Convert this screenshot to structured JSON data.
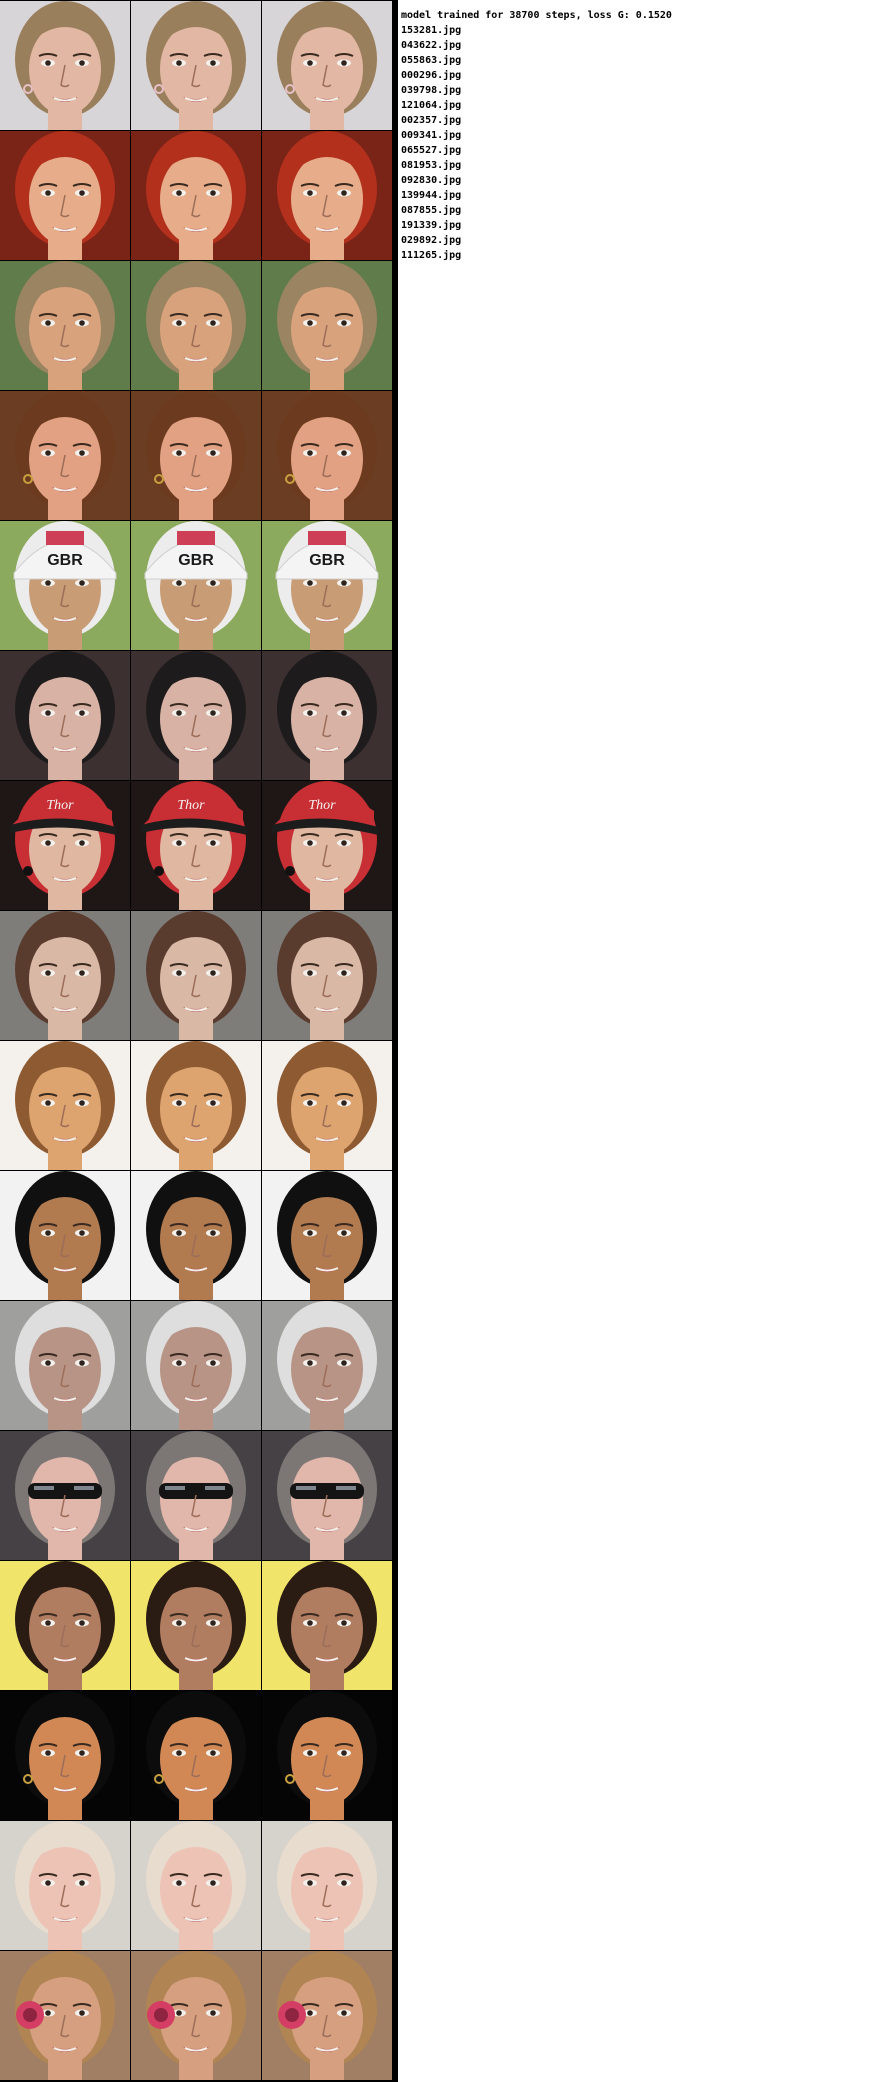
{
  "header": "model trained for 38700 steps, loss G: 0.1520",
  "files": [
    "153281.jpg",
    "043622.jpg",
    "055863.jpg",
    "000296.jpg",
    "039798.jpg",
    "121064.jpg",
    "002357.jpg",
    "009341.jpg",
    "065527.jpg",
    "081953.jpg",
    "092830.jpg",
    "139944.jpg",
    "087855.jpg",
    "191339.jpg",
    "029892.jpg",
    "111265.jpg"
  ],
  "panel_labels": [
    "GBR",
    "GBR",
    "GBR",
    "Thor",
    "Thor",
    "Thor"
  ],
  "rows": [
    {
      "bg": "#d8d5d8",
      "hair": "#9a7f5c",
      "skin": "#e2b7a3",
      "accent": "#1b1b1b",
      "accessory": "earring"
    },
    {
      "bg": "#7a2317",
      "hair": "#b3301d",
      "skin": "#e7ad8a",
      "accent": "#c44b2f",
      "accessory": "none"
    },
    {
      "bg": "#5f7c4a",
      "hair": "#9a8461",
      "skin": "#d8a27d",
      "accent": "#4b5f35",
      "accessory": "none"
    },
    {
      "bg": "#6b3d22",
      "hair": "#6c3b1f",
      "skin": "#e2a182",
      "accent": "#3f2313",
      "accessory": "earring"
    },
    {
      "bg": "#8caa5d",
      "hair": "#ececec",
      "skin": "#c89c74",
      "accent": "#cc3f56",
      "accessory": "helmet"
    },
    {
      "bg": "#3d3030",
      "hair": "#1e1b1d",
      "skin": "#d8b3a5",
      "accent": "#6a4d48",
      "accessory": "none"
    },
    {
      "bg": "#1f1716",
      "hair": "#c72f34",
      "skin": "#e0b7a1",
      "accent": "#f4f1f0",
      "accessory": "cap"
    },
    {
      "bg": "#7f7d7a",
      "hair": "#5a3c2f",
      "skin": "#d9b8a6",
      "accent": "#b58bb0",
      "accessory": "none"
    },
    {
      "bg": "#f4f1ed",
      "hair": "#8e5a31",
      "skin": "#dda46f",
      "accent": "#6a3b21",
      "accessory": "none"
    },
    {
      "bg": "#f2f2f2",
      "hair": "#101010",
      "skin": "#b17a4f",
      "accent": "#dcb4b3",
      "accessory": "none"
    },
    {
      "bg": "#9fa09d",
      "hair": "#dedede",
      "skin": "#b89486",
      "accent": "#1a1a1a",
      "accessory": "none"
    },
    {
      "bg": "#454145",
      "hair": "#7c7774",
      "skin": "#e1b6ab",
      "accent": "#151515",
      "accessory": "sunglasses"
    },
    {
      "bg": "#f1e46a",
      "hair": "#2a1b13",
      "skin": "#b07d61",
      "accent": "#d2b06b",
      "accessory": "none"
    },
    {
      "bg": "#050505",
      "hair": "#0c0c0c",
      "skin": "#d18855",
      "accent": "#2e1b12",
      "accessory": "earring"
    },
    {
      "bg": "#d6d2cc",
      "hair": "#e8dccf",
      "skin": "#ecc3b5",
      "accent": "#b28c80",
      "accessory": "none"
    },
    {
      "bg": "#a07f64",
      "hair": "#b08453",
      "skin": "#d59f80",
      "accent": "#d43e64",
      "accessory": "flower"
    }
  ]
}
